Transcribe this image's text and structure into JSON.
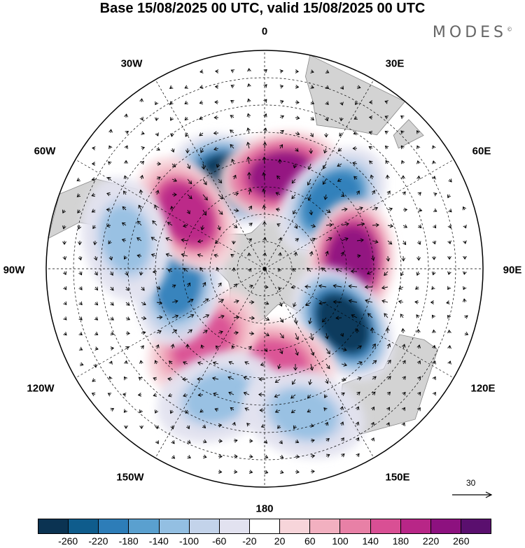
{
  "title": "Base 15/08/2025 00 UTC, valid 15/08/2025 00 UTC",
  "brand": "MODES",
  "brand_mark": "©",
  "longitude_labels": {
    "lon_0": "0",
    "lon_30e": "30E",
    "lon_60e": "60E",
    "lon_90e": "90E",
    "lon_120e": "120E",
    "lon_150e": "150E",
    "lon_180": "180",
    "lon_150w": "150W",
    "lon_120w": "120W",
    "lon_90w": "90W",
    "lon_60w": "60W",
    "lon_30w": "30W"
  },
  "reference_vector": {
    "label": "30",
    "icon": "arrow-right-icon"
  },
  "colorbar": {
    "colors": [
      "#0b3352",
      "#0f5c8c",
      "#2d7db8",
      "#5aa0cf",
      "#93bfe2",
      "#c3d3ea",
      "#e2e2f0",
      "#ffffff",
      "#f7d5da",
      "#f2b0c0",
      "#e880a6",
      "#d94f94",
      "#b82687",
      "#8d117f",
      "#5a0f6e"
    ],
    "ticks": [
      "-260",
      "-220",
      "-180",
      "-140",
      "-100",
      "-60",
      "-20",
      "20",
      "60",
      "100",
      "140",
      "180",
      "220",
      "260"
    ]
  },
  "map_colors": {
    "land": "#d3d3d3",
    "coast": "#888888",
    "grid": "#000000",
    "arrow": "#000000"
  },
  "anomaly_centers": [
    {
      "name": "negative-anomaly-south-atlantic",
      "lon": -20,
      "lat": -55,
      "value": -260
    },
    {
      "name": "positive-anomaly-south-atlantic",
      "lon": 10,
      "lat": -55,
      "value": 240
    },
    {
      "name": "negative-anomaly-indian-west",
      "lon": 45,
      "lat": -55,
      "value": -200
    },
    {
      "name": "positive-anomaly-indian",
      "lon": 85,
      "lat": -58,
      "value": 260
    },
    {
      "name": "negative-anomaly-australia-south",
      "lon": 125,
      "lat": -55,
      "value": -260
    },
    {
      "name": "positive-anomaly-tasman",
      "lon": 175,
      "lat": -55,
      "value": 180
    },
    {
      "name": "positive-anomaly-pacific",
      "lon": -140,
      "lat": -55,
      "value": 160
    },
    {
      "name": "negative-anomaly-pacific-east",
      "lon": -100,
      "lat": -58,
      "value": -180
    },
    {
      "name": "positive-anomaly-drake",
      "lon": -55,
      "lat": -55,
      "value": 200
    },
    {
      "name": "negative-anomaly-south-america-west",
      "lon": -78,
      "lat": -38,
      "value": -100
    },
    {
      "name": "negative-anomaly-south-pacific",
      "lon": -160,
      "lat": -40,
      "value": -100
    },
    {
      "name": "negative-anomaly-new-zealand",
      "lon": 165,
      "lat": -35,
      "value": -100
    }
  ]
}
